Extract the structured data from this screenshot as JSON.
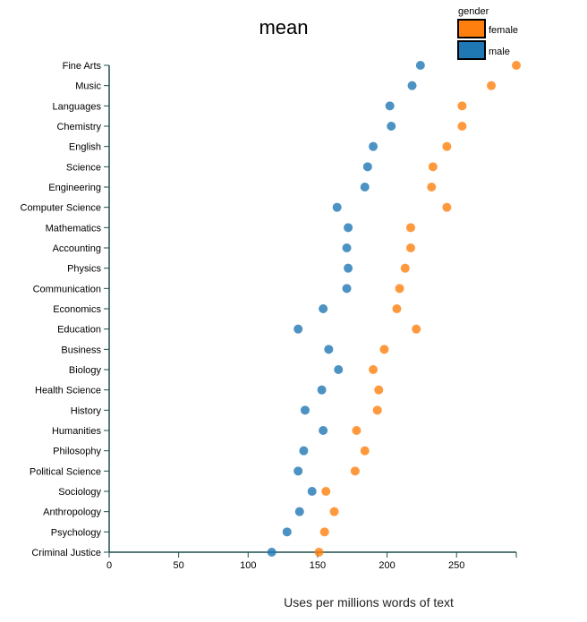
{
  "chart_data": {
    "type": "scatter",
    "title": "mean",
    "xlabel": "Uses per millions words of text",
    "ylabel": "",
    "xlim": [
      0,
      293
    ],
    "xticks": [
      0,
      50,
      100,
      150,
      200,
      250
    ],
    "legend": {
      "title": "gender",
      "placement": "top-right",
      "entries": [
        {
          "name": "female",
          "color": "#ff7f0e"
        },
        {
          "name": "male",
          "color": "#1f77b4"
        }
      ]
    },
    "categories": [
      "Fine Arts",
      "Music",
      "Languages",
      "Chemistry",
      "English",
      "Science",
      "Engineering",
      "Computer Science",
      "Mathematics",
      "Accounting",
      "Physics",
      "Communication",
      "Economics",
      "Education",
      "Business",
      "Biology",
      "Health Science",
      "History",
      "Humanities",
      "Philosophy",
      "Political Science",
      "Sociology",
      "Anthropology",
      "Psychology",
      "Criminal Justice"
    ],
    "series": [
      {
        "name": "female",
        "color": "#ff7f0e",
        "values": [
          293,
          275,
          254,
          254,
          243,
          233,
          232,
          243,
          217,
          217,
          213,
          209,
          207,
          221,
          198,
          190,
          194,
          193,
          178,
          184,
          177,
          156,
          162,
          155,
          151
        ]
      },
      {
        "name": "male",
        "color": "#1f77b4",
        "values": [
          224,
          218,
          202,
          203,
          190,
          186,
          184,
          164,
          172,
          171,
          172,
          171,
          154,
          136,
          158,
          165,
          153,
          141,
          154,
          140,
          136,
          146,
          137,
          128,
          117
        ]
      }
    ]
  }
}
